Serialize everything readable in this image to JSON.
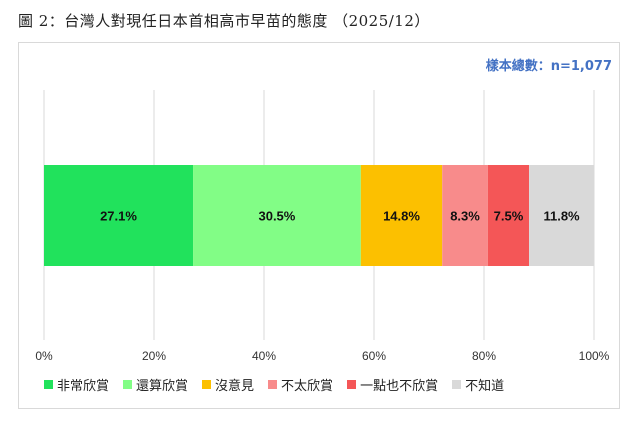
{
  "title": "圖 2：台灣人對現任日本首相高市早苗的態度 （2025/12）",
  "sample_note": "樣本總數：n=1,077",
  "chart_data": {
    "type": "bar",
    "orientation": "horizontal-stacked-100",
    "title": "圖 2：台灣人對現任日本首相高市早苗的態度 （2025/12）",
    "xlim": [
      0,
      100
    ],
    "ticks": [
      "0%",
      "20%",
      "40%",
      "60%",
      "80%",
      "100%"
    ],
    "tick_values": [
      0,
      20,
      40,
      60,
      80,
      100
    ],
    "grid": true,
    "legend": "bottom",
    "series": [
      {
        "name": "非常欣賞",
        "value": 27.1,
        "label": "27.1%",
        "color": "#21e25c"
      },
      {
        "name": "還算欣賞",
        "value": 30.5,
        "label": "30.5%",
        "color": "#82fd86"
      },
      {
        "name": "沒意見",
        "value": 14.8,
        "label": "14.8%",
        "color": "#fcc000"
      },
      {
        "name": "不太欣賞",
        "value": 8.3,
        "label": "8.3%",
        "color": "#f88b8b"
      },
      {
        "name": "一點也不欣賞",
        "value": 7.5,
        "label": "7.5%",
        "color": "#f45657"
      },
      {
        "name": "不知道",
        "value": 11.8,
        "label": "11.8%",
        "color": "#d9d9d9"
      }
    ]
  }
}
